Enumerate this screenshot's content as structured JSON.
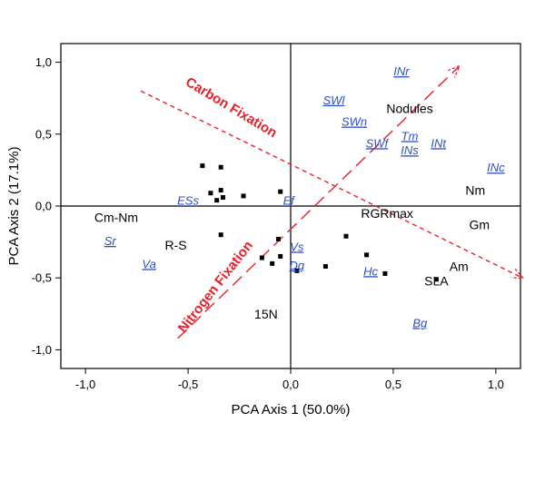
{
  "chart_data": {
    "type": "scatter",
    "xlabel": "PCA Axis 1 (50.0%)",
    "ylabel": "PCA Axis 2 (17.1%)",
    "xlim": [
      -1.12,
      1.12
    ],
    "ylim": [
      -1.13,
      1.13
    ],
    "xticks": [
      -1.0,
      -0.5,
      0.0,
      0.5,
      1.0
    ],
    "xtick_labels": [
      "-1,0",
      "-0,5",
      "0,0",
      "0,5",
      "1,0"
    ],
    "yticks": [
      -1.0,
      -0.5,
      0.0,
      0.5,
      1.0
    ],
    "ytick_labels": [
      "-1,0",
      "-0,5",
      "0,0",
      "0,5",
      "1,0"
    ],
    "grid": false,
    "zero_lines": true,
    "points": [
      {
        "x": -0.43,
        "y": 0.28
      },
      {
        "x": -0.34,
        "y": 0.27
      },
      {
        "x": -0.39,
        "y": 0.09
      },
      {
        "x": -0.36,
        "y": 0.04
      },
      {
        "x": -0.34,
        "y": 0.11
      },
      {
        "x": -0.33,
        "y": 0.06
      },
      {
        "x": -0.23,
        "y": 0.07
      },
      {
        "x": -0.05,
        "y": 0.1
      },
      {
        "x": -0.34,
        "y": -0.2
      },
      {
        "x": -0.06,
        "y": -0.23
      },
      {
        "x": -0.14,
        "y": -0.36
      },
      {
        "x": -0.09,
        "y": -0.4
      },
      {
        "x": -0.05,
        "y": -0.35
      },
      {
        "x": 0.03,
        "y": -0.45
      },
      {
        "x": 0.17,
        "y": -0.42
      },
      {
        "x": 0.27,
        "y": -0.21
      },
      {
        "x": 0.37,
        "y": -0.34
      },
      {
        "x": 0.46,
        "y": -0.47
      },
      {
        "x": 0.71,
        "y": -0.51
      }
    ],
    "variable_labels": [
      {
        "text": "Cm-Nm",
        "x": -0.85,
        "y": -0.08,
        "style": "black"
      },
      {
        "text": "R-S",
        "x": -0.56,
        "y": -0.27,
        "style": "black"
      },
      {
        "text": "15N",
        "x": -0.12,
        "y": -0.75,
        "style": "black"
      },
      {
        "text": "Nodules",
        "x": 0.58,
        "y": 0.68,
        "style": "black"
      },
      {
        "text": "Nm",
        "x": 0.9,
        "y": 0.11,
        "style": "black"
      },
      {
        "text": "RGRmax",
        "x": 0.47,
        "y": -0.05,
        "style": "black"
      },
      {
        "text": "Gm",
        "x": 0.92,
        "y": -0.13,
        "style": "black"
      },
      {
        "text": "Am",
        "x": 0.82,
        "y": -0.42,
        "style": "black"
      },
      {
        "text": "SLA",
        "x": 0.71,
        "y": -0.52,
        "style": "black"
      },
      {
        "text": "INr",
        "x": 0.54,
        "y": 0.94,
        "style": "blue"
      },
      {
        "text": "SWl",
        "x": 0.21,
        "y": 0.74,
        "style": "blue"
      },
      {
        "text": "SWn",
        "x": 0.31,
        "y": 0.59,
        "style": "blue"
      },
      {
        "text": "Tm",
        "x": 0.58,
        "y": 0.49,
        "style": "blue"
      },
      {
        "text": "SWf",
        "x": 0.42,
        "y": 0.44,
        "style": "blue"
      },
      {
        "text": "INs",
        "x": 0.58,
        "y": 0.39,
        "style": "blue"
      },
      {
        "text": "INt",
        "x": 0.72,
        "y": 0.44,
        "style": "blue"
      },
      {
        "text": "INc",
        "x": 1.0,
        "y": 0.27,
        "style": "blue"
      },
      {
        "text": "ESs",
        "x": -0.5,
        "y": 0.04,
        "style": "blue"
      },
      {
        "text": "Ef",
        "x": -0.01,
        "y": 0.04,
        "style": "blue"
      },
      {
        "text": "Sr",
        "x": -0.88,
        "y": -0.24,
        "style": "blue"
      },
      {
        "text": "Va",
        "x": -0.69,
        "y": -0.4,
        "style": "blue"
      },
      {
        "text": "Vs",
        "x": 0.03,
        "y": -0.28,
        "style": "blue"
      },
      {
        "text": "Dg",
        "x": 0.03,
        "y": -0.41,
        "style": "blue"
      },
      {
        "text": "Hc",
        "x": 0.39,
        "y": -0.45,
        "style": "blue"
      },
      {
        "text": "Bg",
        "x": 0.63,
        "y": -0.81,
        "style": "blue"
      }
    ],
    "annotations": [
      {
        "text": "Carbon Fixation",
        "x": -0.3,
        "y": 0.66,
        "rotate": 31,
        "color": "#e8202a"
      },
      {
        "text": "Nitrogen Fixation",
        "x": -0.35,
        "y": -0.58,
        "rotate": -52,
        "color": "#e8202a"
      }
    ],
    "arrows": [
      {
        "name": "carbon-fixation-arrow",
        "from": [
          -0.73,
          0.8
        ],
        "to": [
          1.13,
          -0.5
        ],
        "dash": "5,4",
        "color": "#e8202a"
      },
      {
        "name": "nitrogen-fixation-arrow",
        "from": [
          -0.55,
          -0.92
        ],
        "to": [
          0.82,
          0.97
        ],
        "dash": "14,7",
        "color": "#e8202a"
      }
    ]
  }
}
